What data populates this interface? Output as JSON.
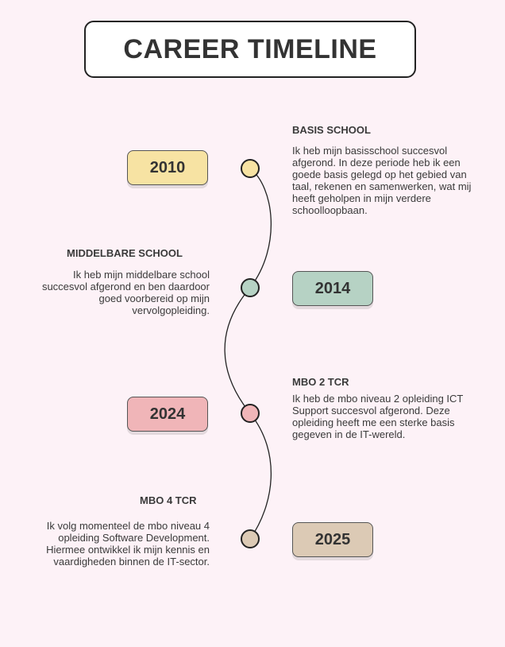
{
  "title": "CAREER TIMELINE",
  "entries": [
    {
      "year": "2010",
      "heading": "BASIS SCHOOL",
      "description": " Ik heb mijn basisschool succesvol afgerond. In deze periode heb ik een goede basis gelegd op het gebied van taal, rekenen en samenwerken, wat mij heeft geholpen in mijn verdere schoolloopbaan.",
      "color": "#f7e3a3",
      "dot_color": "#f7e3a3"
    },
    {
      "year": "2014",
      "heading": "MIDDELBARE SCHOOL",
      "description": "Ik heb mijn middelbare school succesvol afgerond en ben daardoor goed voorbereid op mijn vervolgopleiding.",
      "color": "#b6d2c4",
      "dot_color": "#b6d2c4"
    },
    {
      "year": "2024",
      "heading": "MBO 2 TCR",
      "description": "Ik heb de mbo niveau 2 opleiding ICT Support succesvol afgerond. Deze opleiding heeft me een sterke basis gegeven in de IT-wereld.",
      "color": "#f0b5b8",
      "dot_color": "#f0b5b8"
    },
    {
      "year": "2025",
      "heading": "MBO 4 TCR",
      "description": "Ik volg momenteel de mbo niveau 4 opleiding Software Development. Hiermee ontwikkel ik mijn kennis en vaardigheden binnen de IT-sector.",
      "color": "#dccab5",
      "dot_color": "#dccab5"
    }
  ]
}
